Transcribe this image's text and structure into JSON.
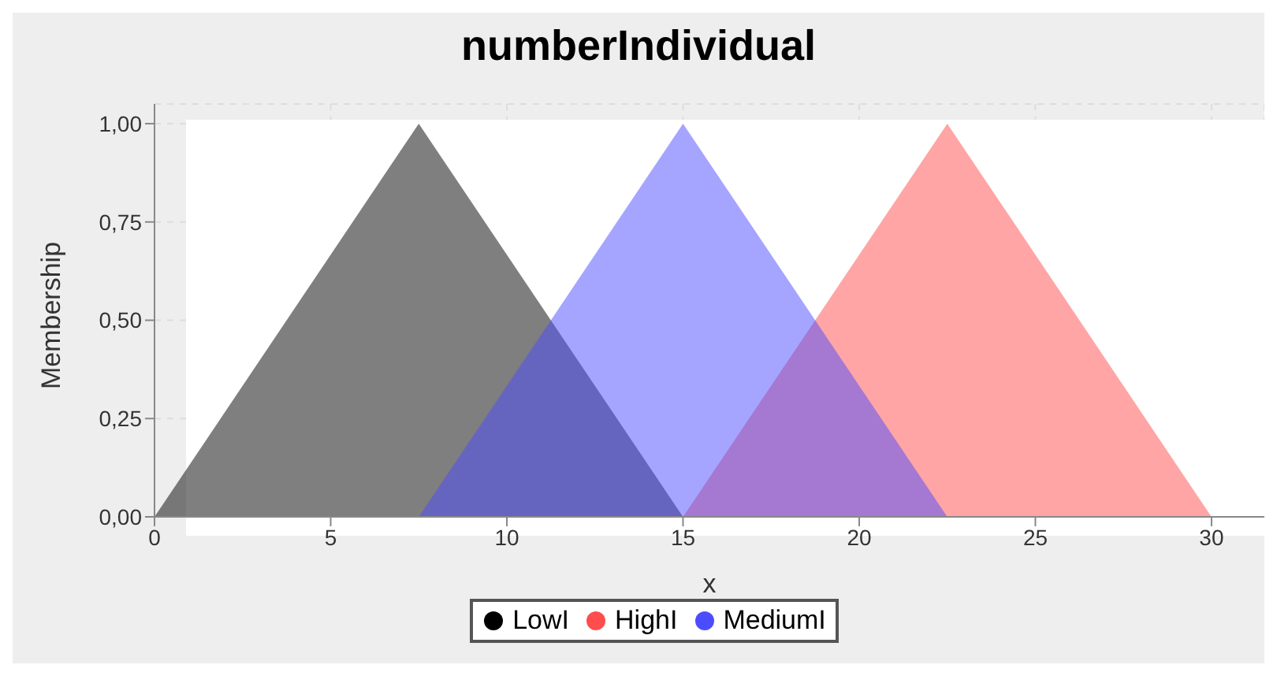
{
  "chart_data": {
    "type": "area",
    "title": "numberIndividual",
    "xlabel": "x",
    "ylabel": "Membership",
    "series": [
      {
        "name": "LowI",
        "color": "#000000",
        "x": [
          0,
          7.5,
          15
        ],
        "values": [
          0,
          1,
          0
        ]
      },
      {
        "name": "HighI",
        "color": "#ff4c4c",
        "x": [
          15,
          22.5,
          30
        ],
        "values": [
          0,
          1,
          0
        ]
      },
      {
        "name": "MediumI",
        "color": "#4c4cff",
        "x": [
          7.5,
          15,
          22.5
        ],
        "values": [
          0,
          1,
          0
        ]
      }
    ],
    "xlim": [
      0,
      31.5
    ],
    "xticks": [
      0,
      5,
      10,
      15,
      20,
      25,
      30
    ],
    "ylim": [
      0,
      1.05
    ],
    "yticks": [
      {
        "value": 0,
        "label": "0,00"
      },
      {
        "value": 0.25,
        "label": "0,25"
      },
      {
        "value": 0.5,
        "label": "0,50"
      },
      {
        "value": 0.75,
        "label": "0,75"
      },
      {
        "value": 1,
        "label": "1,00"
      }
    ],
    "grid": true,
    "legend": "bottom",
    "marker": "none"
  }
}
